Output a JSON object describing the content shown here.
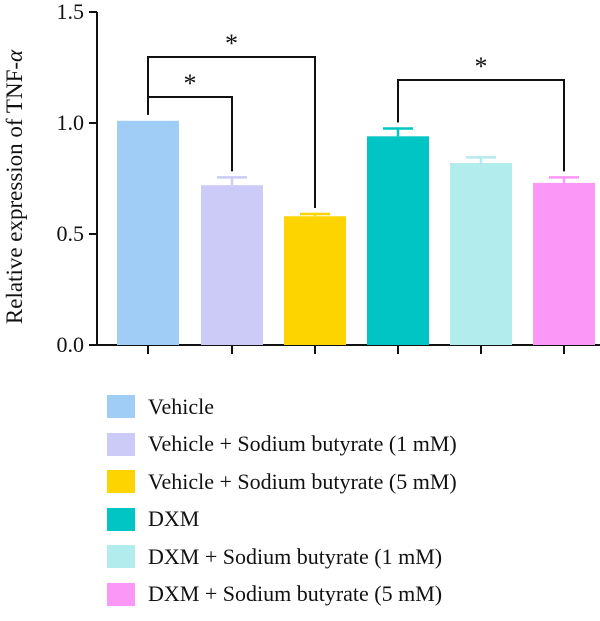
{
  "chart_data": {
    "type": "bar",
    "ylabel": "Relative expression of TNF-α",
    "ylabel_parts": [
      "Relative expression of TNF-",
      "α"
    ],
    "ylim": [
      0,
      1.5
    ],
    "yticks": [
      "0.0",
      "0.5",
      "1.0",
      "1.5"
    ],
    "ytick_values": [
      0,
      0.5,
      1.0,
      1.5
    ],
    "categories": [
      "Vehicle",
      "Vehicle + Sodium butyrate (1 mM)",
      "Vehicle + Sodium butyrate (5 mM)",
      "DXM",
      "DXM + Sodium butyrate (1 mM)",
      "DXM + Sodium butyrate (5 mM)"
    ],
    "values": [
      1.01,
      0.72,
      0.58,
      0.94,
      0.82,
      0.73
    ],
    "errors": [
      0.0,
      0.035,
      0.01,
      0.035,
      0.025,
      0.025
    ],
    "colors": [
      "#9fcdf5",
      "#cccbf8",
      "#fdd400",
      "#00c5c4",
      "#b3ecec",
      "#fb97f6"
    ],
    "significance": [
      {
        "from": 0,
        "to": 1,
        "label": "*"
      },
      {
        "from": 0,
        "to": 2,
        "label": "*"
      },
      {
        "from": 3,
        "to": 5,
        "label": "*"
      }
    ],
    "legend_position": "bottom",
    "grid": false
  }
}
